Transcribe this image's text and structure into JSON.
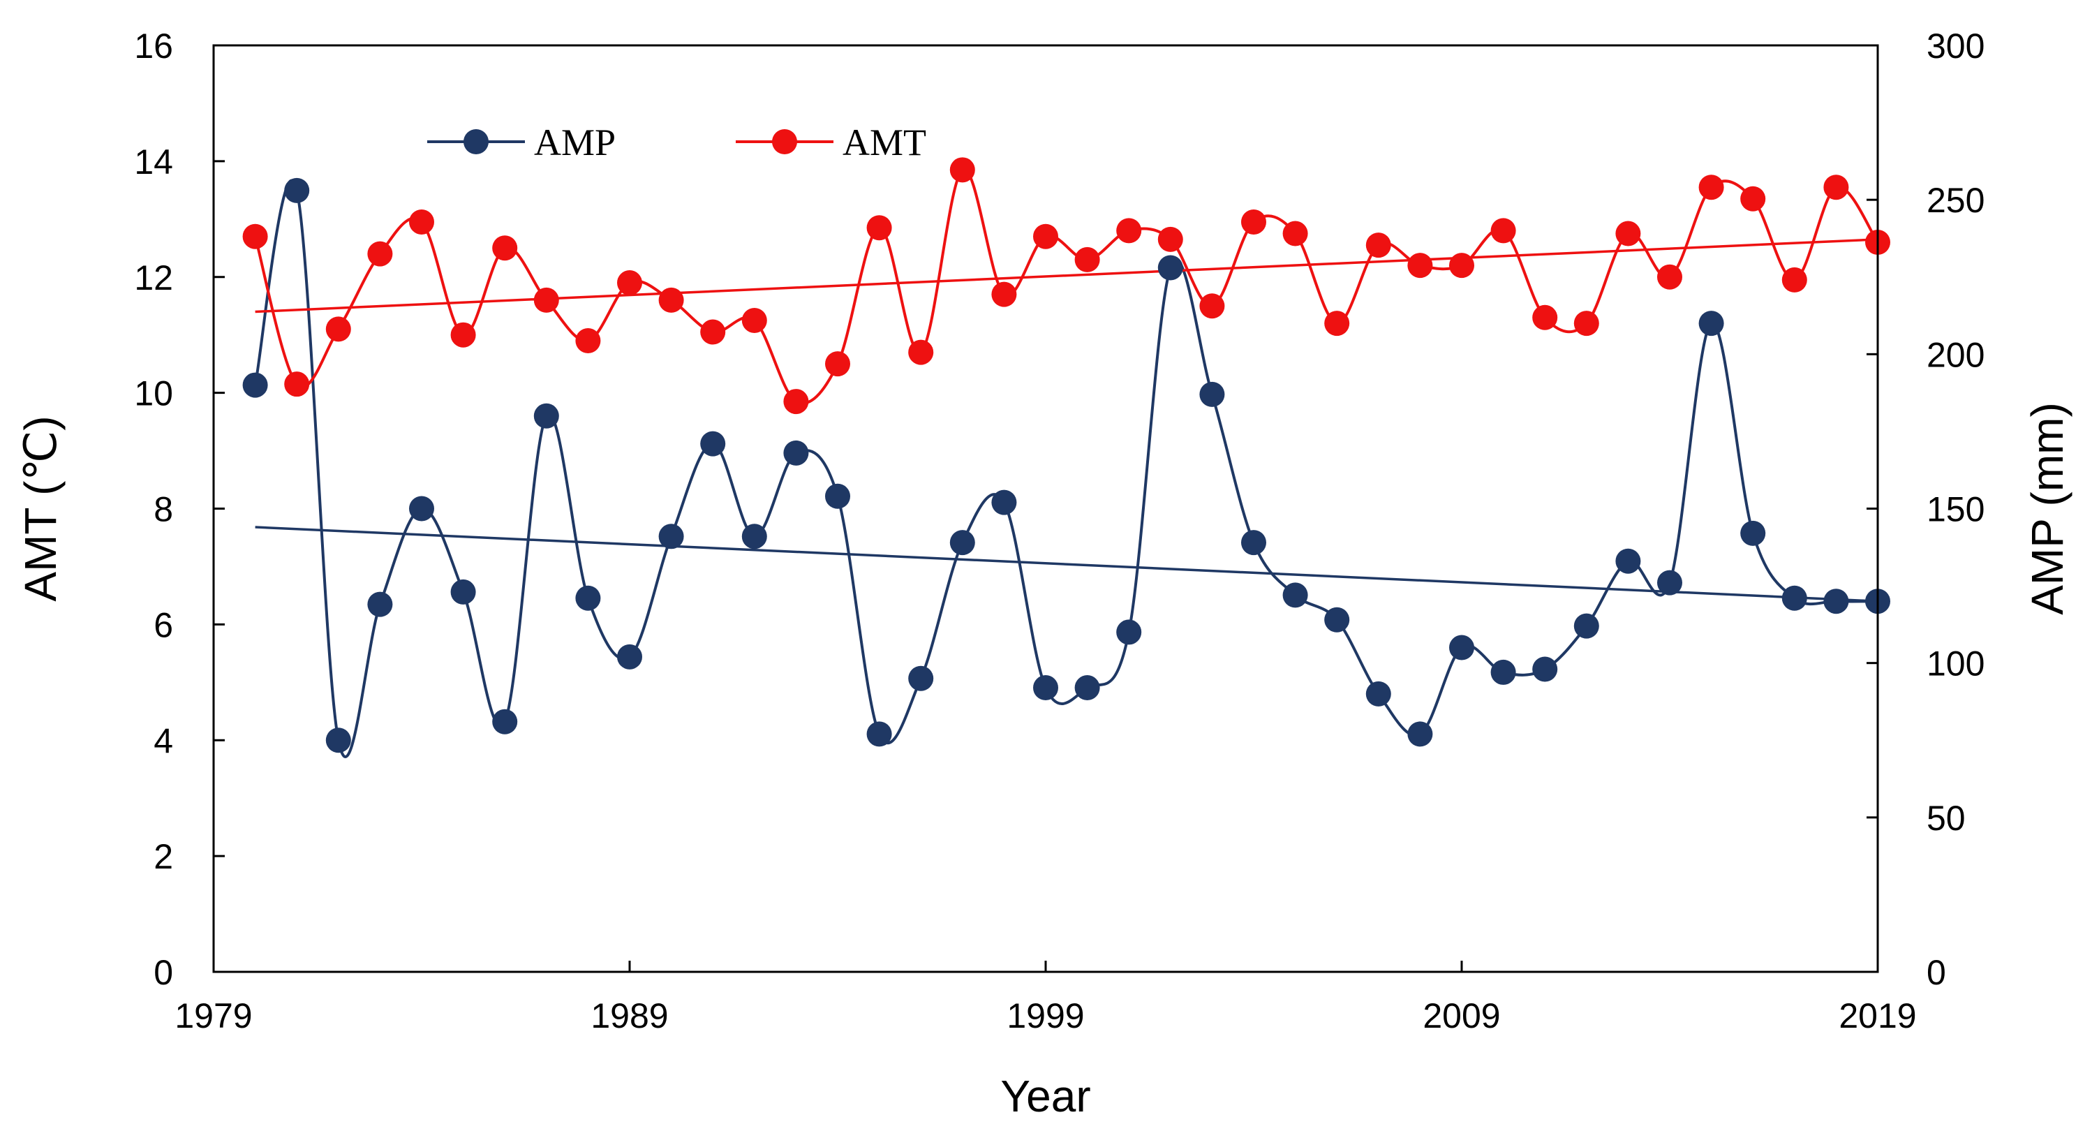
{
  "chart_data": {
    "type": "line",
    "title": "",
    "xlabel": "Year",
    "ylabel_left": "AMT (℃)",
    "ylabel_right": "AMP (mm)",
    "xlim": [
      1979,
      2019
    ],
    "ylim_left": [
      0,
      16
    ],
    "ylim_right": [
      0,
      300
    ],
    "x_ticks": [
      "1979",
      "1989",
      "1999",
      "2009",
      "2019"
    ],
    "y_left_ticks": [
      "0",
      "2",
      "4",
      "6",
      "8",
      "10",
      "12",
      "14",
      "16"
    ],
    "y_right_ticks": [
      "0",
      "50",
      "100",
      "150",
      "200",
      "250",
      "300"
    ],
    "grid": false,
    "legend_position": "top-left",
    "x": [
      1980,
      1981,
      1982,
      1983,
      1984,
      1985,
      1986,
      1987,
      1988,
      1989,
      1990,
      1991,
      1992,
      1993,
      1994,
      1995,
      1996,
      1997,
      1998,
      1999,
      2000,
      2001,
      2002,
      2003,
      2004,
      2005,
      2006,
      2007,
      2008,
      2009,
      2010,
      2011,
      2012,
      2013,
      2014,
      2015,
      2016,
      2017,
      2018,
      2019
    ],
    "series": [
      {
        "name": "AMP",
        "axis": "right",
        "color": "#1f3864",
        "values": [
          190,
          253,
          75,
          119,
          150,
          123,
          81,
          180,
          121,
          102,
          141,
          171,
          141,
          168,
          154,
          77,
          95,
          139,
          152,
          92,
          92,
          110,
          228,
          187,
          139,
          122,
          114,
          90,
          77,
          105,
          97,
          98,
          112,
          133,
          126,
          210,
          142,
          121,
          120,
          120
        ],
        "trend": [
          144,
          120
        ]
      },
      {
        "name": "AMT",
        "axis": "left",
        "color": "#ee1111",
        "values": [
          12.7,
          10.15,
          11.1,
          12.4,
          12.95,
          11.0,
          12.5,
          11.6,
          10.9,
          11.9,
          11.6,
          11.05,
          11.25,
          9.85,
          10.5,
          12.85,
          10.7,
          13.85,
          11.7,
          12.7,
          12.3,
          12.8,
          12.65,
          11.5,
          12.95,
          12.75,
          11.2,
          12.55,
          12.2,
          12.2,
          12.8,
          11.3,
          11.2,
          12.75,
          12.0,
          13.55,
          13.35,
          11.95,
          13.55,
          12.6
        ],
        "trend": [
          11.4,
          12.65
        ]
      }
    ]
  }
}
